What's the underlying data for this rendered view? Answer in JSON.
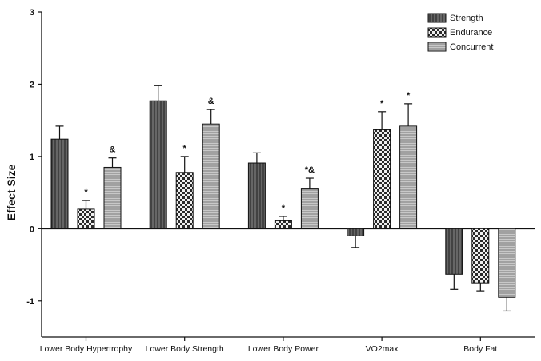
{
  "chart_data": {
    "type": "bar",
    "title": "",
    "xlabel": "",
    "ylabel": "Effect Size",
    "ylim": [
      -1.5,
      3
    ],
    "yticks": [
      3,
      2,
      1,
      0,
      -1
    ],
    "grid": false,
    "legend_position": "top-right",
    "categories": [
      "Lower Body Hypertrophy",
      "Lower Body Strength",
      "Lower Body Power",
      "VO2max",
      "Body Fat"
    ],
    "series": [
      {
        "name": "Strength",
        "pattern": "vertical-dark",
        "values": [
          1.24,
          1.77,
          0.91,
          -0.1,
          -0.63
        ],
        "errors": [
          0.18,
          0.21,
          0.14,
          0.16,
          0.21
        ]
      },
      {
        "name": "Endurance",
        "pattern": "checker",
        "values": [
          0.27,
          0.78,
          0.11,
          1.37,
          -0.75
        ],
        "errors": [
          0.12,
          0.22,
          0.06,
          0.25,
          0.11
        ]
      },
      {
        "name": "Concurrent",
        "pattern": "horizontal-light",
        "values": [
          0.85,
          1.45,
          0.55,
          1.42,
          -0.95
        ],
        "errors": [
          0.13,
          0.2,
          0.15,
          0.31,
          0.19
        ]
      }
    ],
    "annotations": [
      {
        "category": 0,
        "series": 1,
        "text": "*"
      },
      {
        "category": 0,
        "series": 2,
        "text": "&"
      },
      {
        "category": 1,
        "series": 1,
        "text": "*"
      },
      {
        "category": 1,
        "series": 2,
        "text": "&"
      },
      {
        "category": 2,
        "series": 1,
        "text": "*"
      },
      {
        "category": 2,
        "series": 2,
        "text": "*&"
      },
      {
        "category": 3,
        "series": 1,
        "text": "*"
      },
      {
        "category": 3,
        "series": 2,
        "text": "*"
      }
    ]
  }
}
